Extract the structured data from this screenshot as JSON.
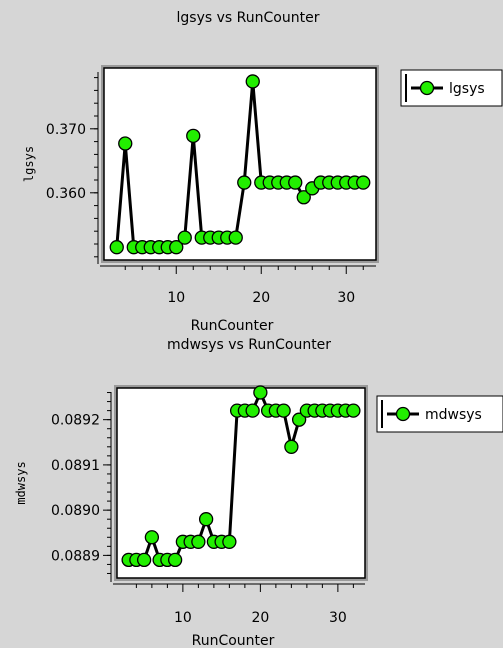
{
  "chart_data": [
    {
      "type": "line",
      "title": "lgsys vs RunCounter",
      "xlabel": "RunCounter",
      "ylabel": "lgsys",
      "xlim": [
        1.5,
        33.5
      ],
      "ylim": [
        0.3495,
        0.3795
      ],
      "xticks": [
        10,
        20,
        30
      ],
      "xtick_labels": [
        "10",
        "20",
        "30"
      ],
      "yticks": [
        0.36,
        0.37
      ],
      "ytick_labels": [
        "0.360",
        "0.370"
      ],
      "grid": false,
      "legend": "right",
      "series": [
        {
          "name": "lgsys",
          "color": "#22ee00",
          "marker": "circle",
          "x": [
            3,
            4,
            5,
            6,
            7,
            8,
            9,
            10,
            11,
            12,
            13,
            14,
            15,
            16,
            17,
            18,
            19,
            20,
            21,
            22,
            23,
            24,
            25,
            26,
            27,
            28,
            29,
            30,
            31,
            32
          ],
          "y": [
            0.3515,
            0.3677,
            0.3515,
            0.3515,
            0.3515,
            0.3515,
            0.3515,
            0.3515,
            0.353,
            0.3689,
            0.353,
            0.353,
            0.353,
            0.353,
            0.353,
            0.3616,
            0.3774,
            0.3616,
            0.3616,
            0.3616,
            0.3616,
            0.3616,
            0.3593,
            0.3607,
            0.3616,
            0.3616,
            0.3616,
            0.3616,
            0.3616,
            0.3616
          ]
        }
      ]
    },
    {
      "type": "line",
      "title": "mdwsys vs RunCounter",
      "xlabel": "RunCounter",
      "ylabel": "mdwsys",
      "xlim": [
        1.5,
        33.5
      ],
      "ylim": [
        0.08885,
        0.08927
      ],
      "xticks": [
        10,
        20,
        30
      ],
      "xtick_labels": [
        "10",
        "20",
        "30"
      ],
      "yticks": [
        0.0889,
        0.089,
        0.0891,
        0.0892
      ],
      "ytick_labels": [
        "0.0889",
        "0.0890",
        "0.0891",
        "0.0892"
      ],
      "grid": false,
      "legend": "right",
      "series": [
        {
          "name": "mdwsys",
          "color": "#22ee00",
          "marker": "circle",
          "x": [
            3,
            4,
            5,
            6,
            7,
            8,
            9,
            10,
            11,
            12,
            13,
            14,
            15,
            16,
            17,
            18,
            19,
            20,
            21,
            22,
            23,
            24,
            25,
            26,
            27,
            28,
            29,
            30,
            31,
            32
          ],
          "y": [
            0.08889,
            0.08889,
            0.08889,
            0.08894,
            0.08889,
            0.08889,
            0.08889,
            0.08893,
            0.08893,
            0.08893,
            0.08898,
            0.08893,
            0.08893,
            0.08893,
            0.08922,
            0.08922,
            0.08922,
            0.08926,
            0.08922,
            0.08922,
            0.08922,
            0.08914,
            0.0892,
            0.08922,
            0.08922,
            0.08922,
            0.08922,
            0.08922,
            0.08922,
            0.08922
          ]
        }
      ]
    }
  ]
}
